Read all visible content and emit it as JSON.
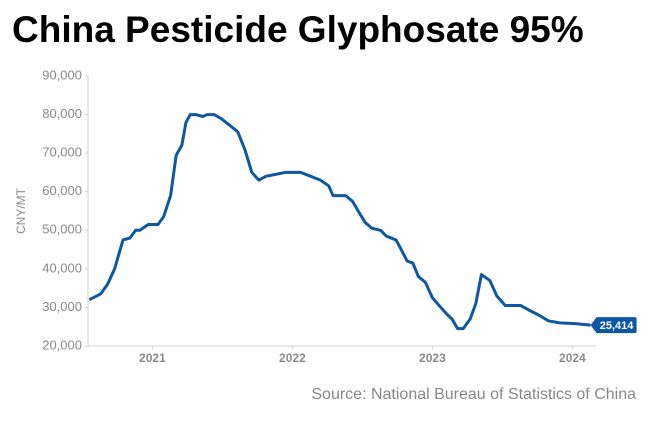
{
  "chart_data": {
    "type": "line",
    "title": "China Pesticide Glyphosate 95%",
    "y_label": "CNY/MT",
    "source": "Source: National Bureau of Statistics of China",
    "color": "#0e57a3",
    "x": [
      2020.55,
      2020.63,
      2020.68,
      2020.73,
      2020.79,
      2020.84,
      2020.88,
      2020.91,
      2020.97,
      2021.04,
      2021.08,
      2021.13,
      2021.17,
      2021.21,
      2021.24,
      2021.27,
      2021.31,
      2021.36,
      2021.39,
      2021.44,
      2021.49,
      2021.56,
      2021.61,
      2021.66,
      2021.71,
      2021.76,
      2021.81,
      2021.88,
      2021.95,
      2022.06,
      2022.13,
      2022.2,
      2022.26,
      2022.29,
      2022.38,
      2022.43,
      2022.47,
      2022.52,
      2022.57,
      2022.63,
      2022.67,
      2022.74,
      2022.77,
      2022.82,
      2022.86,
      2022.9,
      2022.95,
      2023.0,
      2023.06,
      2023.11,
      2023.14,
      2023.18,
      2023.22,
      2023.27,
      2023.31,
      2023.35,
      2023.41,
      2023.46,
      2023.52,
      2023.63,
      2023.68,
      2023.76,
      2023.83,
      2023.91,
      2024.02,
      2024.13
    ],
    "values": [
      32000,
      33500,
      36000,
      40000,
      47500,
      48000,
      50000,
      50000,
      51500,
      51500,
      53500,
      59000,
      69500,
      72000,
      78000,
      80000,
      80000,
      79500,
      80000,
      80000,
      79000,
      77000,
      75500,
      71000,
      65000,
      63000,
      64000,
      64500,
      65000,
      65000,
      64000,
      63000,
      61500,
      59000,
      59000,
      57500,
      55000,
      52000,
      50500,
      50000,
      48500,
      47500,
      45500,
      42000,
      41500,
      38000,
      36500,
      32500,
      30000,
      28000,
      27000,
      24500,
      24500,
      27000,
      31000,
      38500,
      37000,
      33000,
      30500,
      30500,
      29500,
      28000,
      26500,
      26000,
      25800,
      25414
    ],
    "value_labels": [
      null,
      null,
      null,
      null,
      null,
      null,
      null,
      null,
      null,
      null,
      null,
      null,
      null,
      null,
      null,
      null,
      null,
      null,
      null,
      null,
      null,
      null,
      null,
      null,
      null,
      null,
      null,
      null,
      null,
      null,
      null,
      null,
      null,
      null,
      null,
      null,
      null,
      null,
      null,
      null,
      null,
      null,
      null,
      null,
      null,
      null,
      null,
      null,
      null,
      null,
      null,
      null,
      null,
      null,
      null,
      null,
      null,
      null,
      null,
      null,
      null,
      null,
      null,
      null,
      null,
      "25,414"
    ],
    "xlim": [
      2020.54,
      2024.14
    ],
    "xticks": [
      2021,
      2022,
      2023,
      2024
    ],
    "ylim": [
      20000,
      90000
    ],
    "yticks": [
      {
        "value": 20000,
        "label": "20,000"
      },
      {
        "value": 30000,
        "label": "30,000"
      },
      {
        "value": 40000,
        "label": "40,000"
      },
      {
        "value": 50000,
        "label": "50,000"
      },
      {
        "value": 60000,
        "label": "60,000"
      },
      {
        "value": 70000,
        "label": "70,000"
      },
      {
        "value": 80000,
        "label": "80,000"
      },
      {
        "value": 90000,
        "label": "90,000"
      }
    ]
  }
}
